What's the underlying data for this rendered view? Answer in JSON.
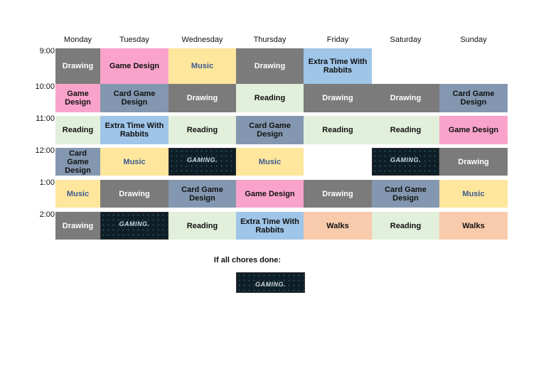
{
  "days": [
    "Monday",
    "Tuesday",
    "Wednesday",
    "Thursday",
    "Friday",
    "Saturday",
    "Sunday"
  ],
  "rows": [
    {
      "time": "9:00",
      "cells": [
        {
          "text": "Drawing",
          "color": "#7b7b7b",
          "text_color": "#ffffff"
        },
        {
          "text": "Game Design",
          "color": "#f9a3cb",
          "text_color": "#111111"
        },
        {
          "text": "Music",
          "color": "#fee69d",
          "text_color": "#3b5b8f"
        },
        {
          "text": "Drawing",
          "color": "#7b7b7b",
          "text_color": "#ffffff"
        },
        {
          "text": "Extra Time With Rabbits",
          "color": "#9fc5e8",
          "text_color": "#111111"
        },
        null,
        null
      ]
    },
    {
      "time": "10:00",
      "cells": [
        {
          "text": "Game Design",
          "color": "#f9a3cb",
          "text_color": "#111111"
        },
        {
          "text": "Card Game Design",
          "color": "#8497b0",
          "text_color": "#111111"
        },
        {
          "text": "Drawing",
          "color": "#7b7b7b",
          "text_color": "#ffffff"
        },
        {
          "text": "Reading",
          "color": "#e2efda",
          "text_color": "#111111"
        },
        {
          "text": "Drawing",
          "color": "#7b7b7b",
          "text_color": "#ffffff"
        },
        {
          "text": "Drawing",
          "color": "#7b7b7b",
          "text_color": "#ffffff"
        },
        {
          "text": "Card Game Design",
          "color": "#8497b0",
          "text_color": "#111111"
        }
      ]
    },
    {
      "time": "11:00",
      "cells": [
        {
          "text": "Reading",
          "color": "#e2efda",
          "text_color": "#111111"
        },
        {
          "text": "Extra Time With Rabbits",
          "color": "#9fc5e8",
          "text_color": "#111111"
        },
        {
          "text": "Reading",
          "color": "#e2efda",
          "text_color": "#111111"
        },
        {
          "text": "Card Game Design",
          "color": "#8497b0",
          "text_color": "#111111"
        },
        {
          "text": "Reading",
          "color": "#e2efda",
          "text_color": "#111111"
        },
        {
          "text": "Reading",
          "color": "#e2efda",
          "text_color": "#111111"
        },
        {
          "text": "Game Design",
          "color": "#f9a3cb",
          "text_color": "#111111"
        }
      ]
    },
    {
      "time": "12:00",
      "cells": [
        {
          "text": "Card Game Design",
          "color": "#8497b0",
          "text_color": "#111111"
        },
        {
          "text": "Music",
          "color": "#fee69d",
          "text_color": "#3b5b8f"
        },
        {
          "text": "GAMING.",
          "color": "#0e1e28",
          "text_color": "#cfd8dc"
        },
        {
          "text": "Music",
          "color": "#fee69d",
          "text_color": "#3b5b8f"
        },
        null,
        {
          "text": "GAMING.",
          "color": "#0e1e28",
          "text_color": "#cfd8dc"
        },
        {
          "text": "Drawing",
          "color": "#7b7b7b",
          "text_color": "#ffffff"
        }
      ]
    },
    {
      "time": "1:00",
      "cells": [
        {
          "text": "Music",
          "color": "#fee69d",
          "text_color": "#3b5b8f"
        },
        {
          "text": "Drawing",
          "color": "#7b7b7b",
          "text_color": "#ffffff"
        },
        {
          "text": "Card Game Design",
          "color": "#8497b0",
          "text_color": "#111111"
        },
        {
          "text": "Game Design",
          "color": "#f9a3cb",
          "text_color": "#111111"
        },
        {
          "text": "Drawing",
          "color": "#7b7b7b",
          "text_color": "#ffffff"
        },
        {
          "text": "Card Game Design",
          "color": "#8497b0",
          "text_color": "#111111"
        },
        {
          "text": "Music",
          "color": "#fee69d",
          "text_color": "#3b5b8f"
        }
      ]
    },
    {
      "time": "2:00",
      "cells": [
        {
          "text": "Drawing",
          "color": "#7b7b7b",
          "text_color": "#ffffff"
        },
        {
          "text": "GAMING.",
          "color": "#0e1e28",
          "text_color": "#cfd8dc"
        },
        {
          "text": "Reading",
          "color": "#e2efda",
          "text_color": "#111111"
        },
        {
          "text": "Extra Time With Rabbits",
          "color": "#9fc5e8",
          "text_color": "#111111"
        },
        {
          "text": "Walks",
          "color": "#f8cbad",
          "text_color": "#111111"
        },
        {
          "text": "Reading",
          "color": "#e2efda",
          "text_color": "#111111"
        },
        {
          "text": "Walks",
          "color": "#f8cbad",
          "text_color": "#111111"
        }
      ]
    }
  ],
  "footer": {
    "label": "If all chores done:",
    "reward": {
      "text": "GAMING.",
      "color": "#0e1e28",
      "text_color": "#cfd8dc"
    }
  }
}
